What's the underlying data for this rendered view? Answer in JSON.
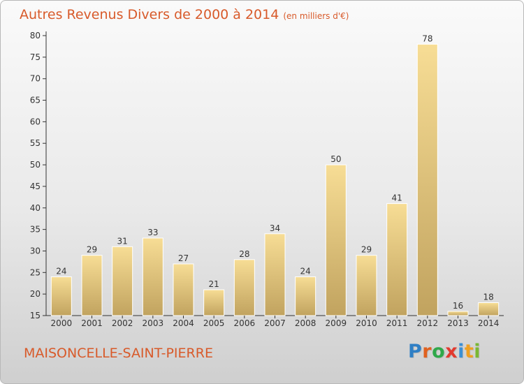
{
  "title": "Autres Revenus Divers de 2000 à 2014",
  "unit": "(en milliers d'€)",
  "commune": "MAISONCELLE-SAINT-PIERRE",
  "brand": {
    "letters": [
      "P",
      "r",
      "o",
      "x",
      "i",
      "t",
      "i"
    ],
    "colors": [
      "#2f7fc5",
      "#e0611f",
      "#2fa84a",
      "#e23a2f",
      "#3b8fd4",
      "#f0a020",
      "#7ab834"
    ]
  },
  "colors": {
    "bar_light": "#f7dd95",
    "bar_dark": "#c1a35f",
    "title": "#d85a2a"
  },
  "chart_data": {
    "type": "bar",
    "title": "Autres Revenus Divers de 2000 à 2014",
    "xlabel": "",
    "ylabel": "",
    "categories": [
      "2000",
      "2001",
      "2002",
      "2003",
      "2004",
      "2005",
      "2006",
      "2007",
      "2008",
      "2009",
      "2010",
      "2011",
      "2012",
      "2013",
      "2014"
    ],
    "values": [
      24,
      29,
      31,
      33,
      27,
      21,
      28,
      34,
      24,
      50,
      29,
      41,
      78,
      16,
      18
    ],
    "ylim": [
      15,
      80
    ],
    "yticks": [
      15,
      20,
      25,
      30,
      35,
      40,
      45,
      50,
      55,
      60,
      65,
      70,
      75,
      80
    ],
    "grid": false,
    "data_labels": true
  }
}
